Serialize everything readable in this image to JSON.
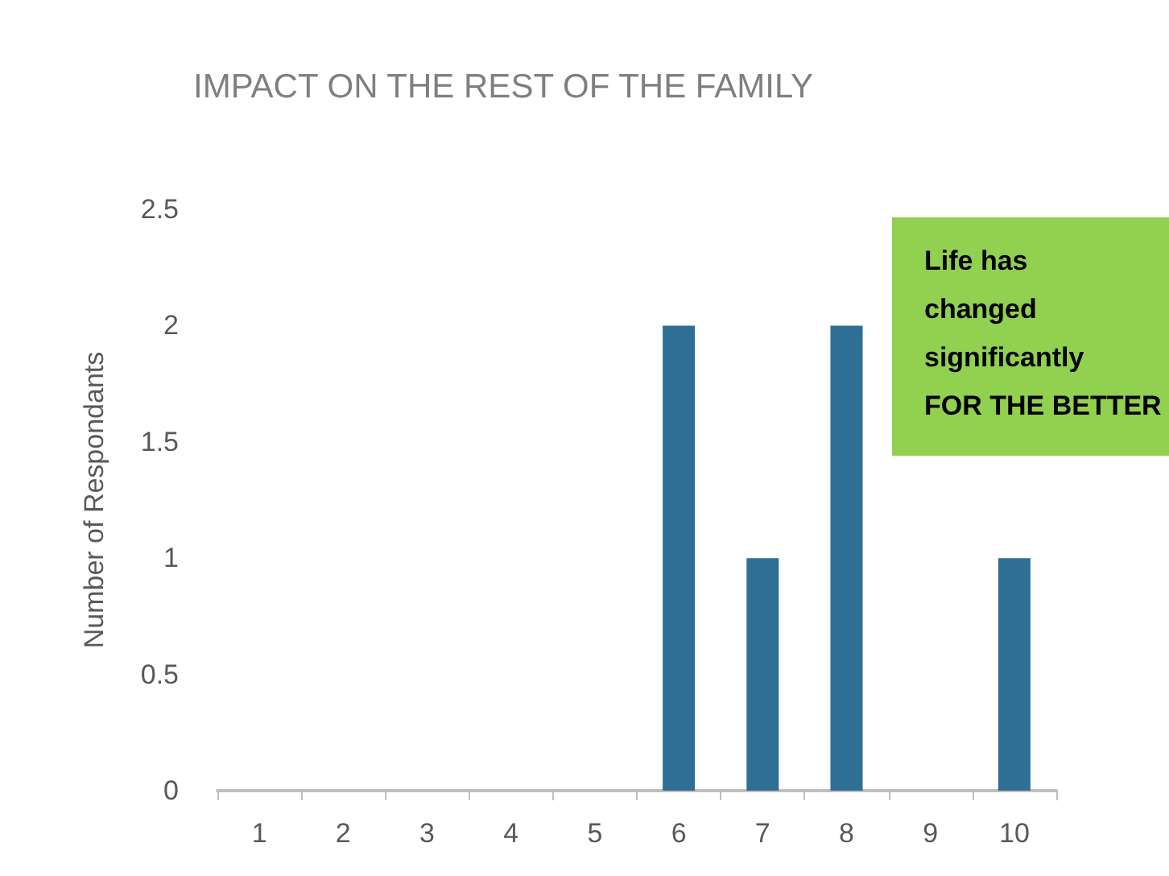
{
  "chart_data": {
    "type": "bar",
    "title": "IMPACT ON THE REST OF THE FAMILY",
    "ylabel": "Number of Respondants",
    "categories": [
      "1",
      "2",
      "3",
      "4",
      "5",
      "6",
      "7",
      "8",
      "9",
      "10"
    ],
    "values": [
      0,
      0,
      0,
      0,
      0,
      2,
      1,
      2,
      0,
      1
    ],
    "color": "#2f6f94",
    "ylim": [
      0,
      2.5
    ],
    "yticks": [
      0,
      0.5,
      1,
      1.5,
      2,
      2.5
    ],
    "grid": false,
    "annotations": [
      "Life has changed significantly FOR THE BETTER"
    ]
  }
}
